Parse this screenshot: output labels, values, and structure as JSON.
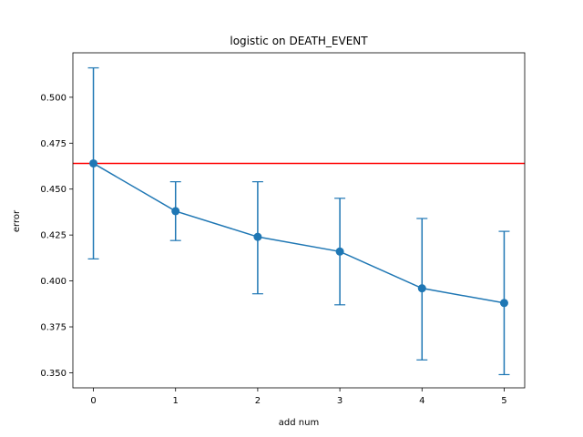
{
  "chart_data": {
    "type": "line",
    "title": "logistic on DEATH_EVENT",
    "xlabel": "add num",
    "ylabel": "error",
    "x": [
      0,
      1,
      2,
      3,
      4,
      5
    ],
    "series": [
      {
        "values": [
          0.464,
          0.438,
          0.424,
          0.416,
          0.396,
          0.388
        ],
        "err_low": [
          0.412,
          0.422,
          0.393,
          0.387,
          0.357,
          0.349
        ],
        "err_high": [
          0.516,
          0.454,
          0.454,
          0.445,
          0.434,
          0.427
        ],
        "color": "#1f77b4"
      }
    ],
    "reference_line": {
      "value": 0.464,
      "color": "#ff0000",
      "orientation": "horizontal"
    },
    "xlim": [
      -0.25,
      5.25
    ],
    "ylim": [
      0.3418,
      0.5242
    ],
    "xticks": [
      0,
      1,
      2,
      3,
      4,
      5
    ],
    "yticks": [
      0.35,
      0.375,
      0.4,
      0.425,
      0.45,
      0.475,
      0.5
    ],
    "ytick_labels": [
      "0.350",
      "0.375",
      "0.400",
      "0.425",
      "0.450",
      "0.475",
      "0.500"
    ],
    "grid": false,
    "legend": "none"
  }
}
